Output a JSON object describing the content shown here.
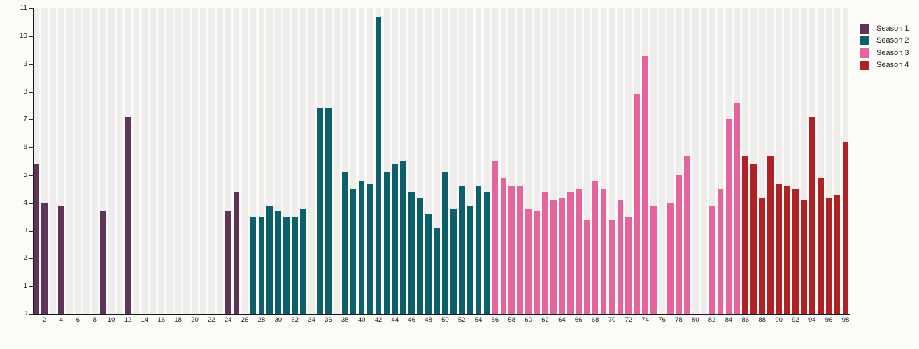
{
  "chart_data": {
    "type": "bar",
    "title": "",
    "xlabel": "",
    "ylabel": "",
    "ylim": [
      0,
      11
    ],
    "y_ticks": [
      0,
      1,
      2,
      3,
      4,
      5,
      6,
      7,
      8,
      9,
      10,
      11
    ],
    "x_ticks": [
      2,
      4,
      6,
      8,
      10,
      12,
      14,
      16,
      18,
      20,
      22,
      24,
      26,
      28,
      30,
      32,
      34,
      36,
      38,
      40,
      42,
      44,
      46,
      48,
      50,
      52,
      54,
      56,
      58,
      60,
      62,
      64,
      66,
      68,
      70,
      72,
      74,
      76,
      78,
      80,
      82,
      84,
      86,
      88,
      90,
      92,
      94,
      96,
      98
    ],
    "x_range": [
      1,
      98
    ],
    "grid": "vertical-stripes",
    "legend_position": "top-right",
    "background_stripe_color": "#eeedeb",
    "series": [
      {
        "name": "Season 1",
        "color": "#5f3458",
        "points": [
          [
            1,
            5.4
          ],
          [
            2,
            4.0
          ],
          [
            4,
            3.9
          ],
          [
            9,
            3.7
          ],
          [
            12,
            7.1
          ],
          [
            24,
            3.7
          ],
          [
            25,
            4.4
          ]
        ]
      },
      {
        "name": "Season 2",
        "color": "#0d5f6c",
        "points": [
          [
            27,
            3.5
          ],
          [
            28,
            3.5
          ],
          [
            29,
            3.9
          ],
          [
            30,
            3.7
          ],
          [
            31,
            3.5
          ],
          [
            32,
            3.5
          ],
          [
            33,
            3.8
          ],
          [
            35,
            7.4
          ],
          [
            36,
            7.4
          ],
          [
            38,
            5.1
          ],
          [
            39,
            4.5
          ],
          [
            40,
            4.8
          ],
          [
            41,
            4.7
          ],
          [
            42,
            10.7
          ],
          [
            43,
            5.1
          ],
          [
            44,
            5.4
          ],
          [
            45,
            5.5
          ],
          [
            46,
            4.4
          ],
          [
            47,
            4.2
          ],
          [
            48,
            3.6
          ],
          [
            49,
            3.1
          ],
          [
            50,
            5.1
          ],
          [
            51,
            3.8
          ],
          [
            52,
            4.6
          ],
          [
            53,
            3.9
          ],
          [
            54,
            4.6
          ],
          [
            55,
            4.4
          ]
        ]
      },
      {
        "name": "Season 3",
        "color": "#e5649e",
        "points": [
          [
            56,
            5.5
          ],
          [
            57,
            4.9
          ],
          [
            58,
            4.6
          ],
          [
            59,
            4.6
          ],
          [
            60,
            3.8
          ],
          [
            61,
            3.7
          ],
          [
            62,
            4.4
          ],
          [
            63,
            4.1
          ],
          [
            64,
            4.2
          ],
          [
            65,
            4.4
          ],
          [
            66,
            4.5
          ],
          [
            67,
            3.4
          ],
          [
            68,
            4.8
          ],
          [
            69,
            4.5
          ],
          [
            70,
            3.4
          ],
          [
            71,
            4.1
          ],
          [
            72,
            3.5
          ],
          [
            73,
            7.9
          ],
          [
            74,
            9.3
          ],
          [
            75,
            3.9
          ],
          [
            77,
            4.0
          ],
          [
            78,
            5.0
          ],
          [
            79,
            5.7
          ],
          [
            82,
            3.9
          ],
          [
            83,
            4.5
          ],
          [
            84,
            7.0
          ],
          [
            85,
            7.6
          ]
        ]
      },
      {
        "name": "Season 4",
        "color": "#b02126",
        "points": [
          [
            86,
            5.7
          ],
          [
            87,
            5.4
          ],
          [
            88,
            4.2
          ],
          [
            89,
            5.7
          ],
          [
            90,
            4.7
          ],
          [
            91,
            4.6
          ],
          [
            92,
            4.5
          ],
          [
            93,
            4.1
          ],
          [
            94,
            7.1
          ],
          [
            95,
            4.9
          ],
          [
            96,
            4.2
          ],
          [
            97,
            4.3
          ],
          [
            98,
            6.2
          ]
        ]
      }
    ]
  }
}
